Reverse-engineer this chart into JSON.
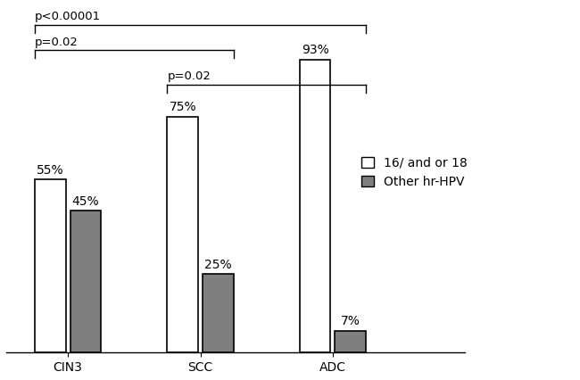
{
  "categories": [
    "CIN3",
    "SCC",
    "ADC"
  ],
  "series": {
    "16/ and or 18": [
      55,
      75,
      93
    ],
    "Other hr-HPV": [
      45,
      25,
      7
    ]
  },
  "bar_colors": {
    "16/ and or 18": "#ffffff",
    "Other hr-HPV": "#7f7f7f"
  },
  "bar_edgecolor": "#000000",
  "bar_width": 0.35,
  "ylim": [
    0,
    110
  ],
  "legend_labels": [
    "16/ and or 18",
    "Other hr-HPV"
  ],
  "value_labels": {
    "16/ and or 18": [
      "55%",
      "75%",
      "93%"
    ],
    "Other hr-HPV": [
      "45%",
      "25%",
      "7%"
    ]
  },
  "background_color": "#ffffff",
  "fontsize": 10,
  "tick_fontsize": 10,
  "group_centers": [
    1.0,
    2.5,
    4.0
  ],
  "xlim": [
    0.3,
    5.5
  ]
}
